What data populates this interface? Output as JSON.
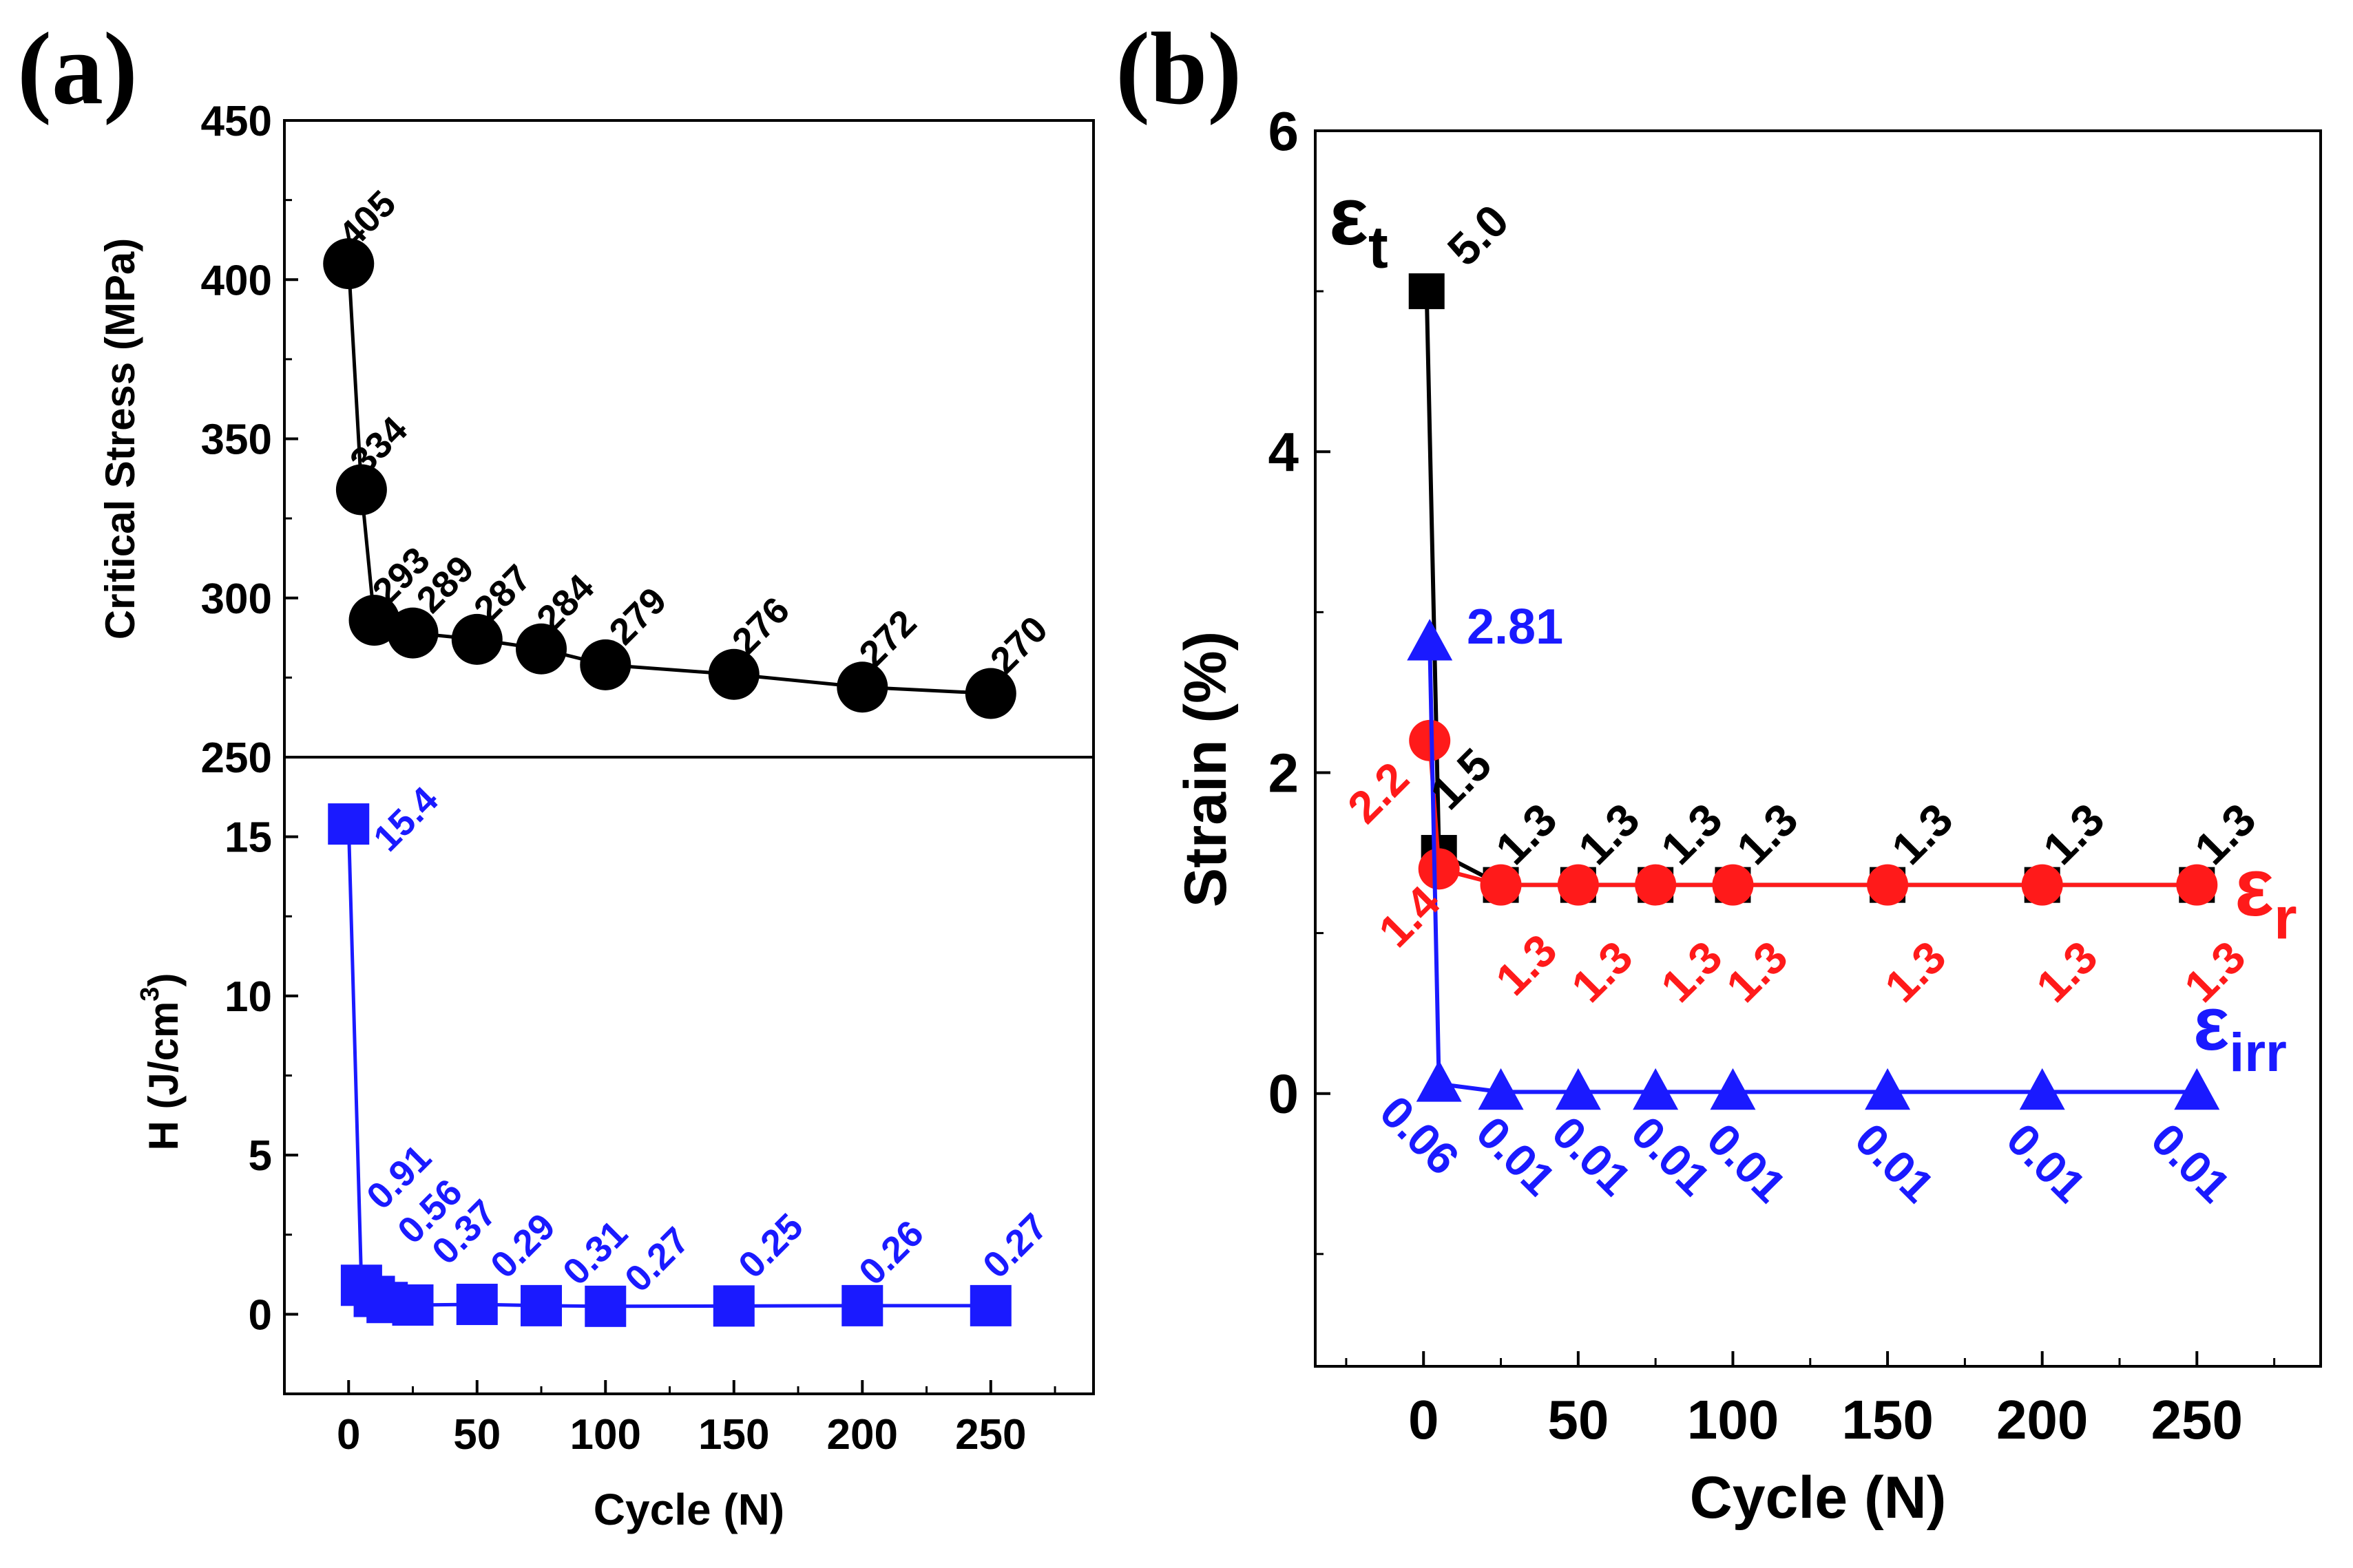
{
  "figure": {
    "panel_labels": [
      "(a)",
      "(b)"
    ]
  },
  "colors": {
    "black": "#000000",
    "red": "#ff1a1a",
    "blue": "#1a1aff"
  },
  "chart_data": [
    {
      "type": "line",
      "panel": "(a) top",
      "marker": "circle",
      "ylabel": "Critical Stress (MPa)",
      "xlabel": "",
      "ylim": [
        250,
        450
      ],
      "yticks": [
        250,
        300,
        350,
        400,
        450
      ],
      "xlim": [
        -25,
        290
      ],
      "series": [
        {
          "color": "#000000",
          "x": [
            0,
            5,
            10,
            25,
            50,
            75,
            100,
            150,
            200,
            250
          ],
          "y": [
            405,
            334,
            293,
            289,
            287,
            284,
            279,
            276,
            272,
            270
          ],
          "labels": [
            "405",
            "334",
            "293",
            "289",
            "287",
            "284",
            "279",
            "276",
            "272",
            "270"
          ]
        }
      ]
    },
    {
      "type": "line",
      "panel": "(a) bottom",
      "marker": "square",
      "ylabel": "H (J/cm3)",
      "xlabel": "Cycle (N)",
      "ylim": [
        -2.5,
        17.5
      ],
      "yticks": [
        0,
        5,
        10,
        15
      ],
      "xlim": [
        -25,
        290
      ],
      "xticks": [
        0,
        50,
        100,
        150,
        200,
        250
      ],
      "series": [
        {
          "color": "#1a1aff",
          "x": [
            0,
            5,
            10,
            15,
            25,
            50,
            75,
            100,
            150,
            200,
            250
          ],
          "y": [
            15.4,
            0.91,
            0.56,
            0.37,
            0.29,
            0.31,
            0.27,
            0.25,
            0.26,
            0.27,
            0.27
          ],
          "labels": [
            "15.4",
            "0.91",
            "0.56",
            "0.37",
            "0.29",
            "0.31",
            "0.27",
            "0.25",
            "0.26",
            "0.27",
            ""
          ]
        }
      ]
    },
    {
      "type": "line",
      "panel": "(b)",
      "ylabel": "Strain (%)",
      "xlabel": "Cycle (N)",
      "ylim": [
        -1.7,
        6
      ],
      "yticks": [
        0,
        2,
        4,
        6
      ],
      "xlim": [
        -35,
        290
      ],
      "xticks": [
        0,
        50,
        100,
        150,
        200,
        250
      ],
      "series": [
        {
          "name": "εt",
          "color": "#000000",
          "marker": "square",
          "x": [
            1,
            5,
            25,
            50,
            75,
            100,
            150,
            200,
            250
          ],
          "y": [
            5.0,
            1.5,
            1.3,
            1.3,
            1.3,
            1.3,
            1.3,
            1.3,
            1.3
          ],
          "labels": [
            "5.0",
            "1.5",
            "1.3",
            "1.3",
            "1.3",
            "1.3",
            "1.3",
            "1.3",
            "1.3"
          ]
        },
        {
          "name": "εr",
          "color": "#ff1a1a",
          "marker": "circle",
          "x": [
            2,
            5,
            25,
            50,
            75,
            100,
            150,
            200,
            250
          ],
          "y": [
            2.2,
            1.4,
            1.3,
            1.3,
            1.3,
            1.3,
            1.3,
            1.3,
            1.3
          ],
          "labels": [
            "2.2",
            "1.4",
            "1.3",
            "1.3",
            "1.3",
            "1.3",
            "1.3",
            "1.3",
            "1.3"
          ]
        },
        {
          "name": "εirr",
          "color": "#1a1aff",
          "marker": "triangle",
          "x": [
            2,
            5,
            25,
            50,
            75,
            100,
            150,
            200,
            250
          ],
          "y": [
            2.81,
            0.06,
            0.01,
            0.01,
            0.01,
            0.01,
            0.01,
            0.01,
            0.01
          ],
          "labels": [
            "2.81",
            "0.06",
            "0.01",
            "0.01",
            "0.01",
            "0.01",
            "0.01",
            "0.01",
            "0.01"
          ]
        }
      ]
    }
  ]
}
